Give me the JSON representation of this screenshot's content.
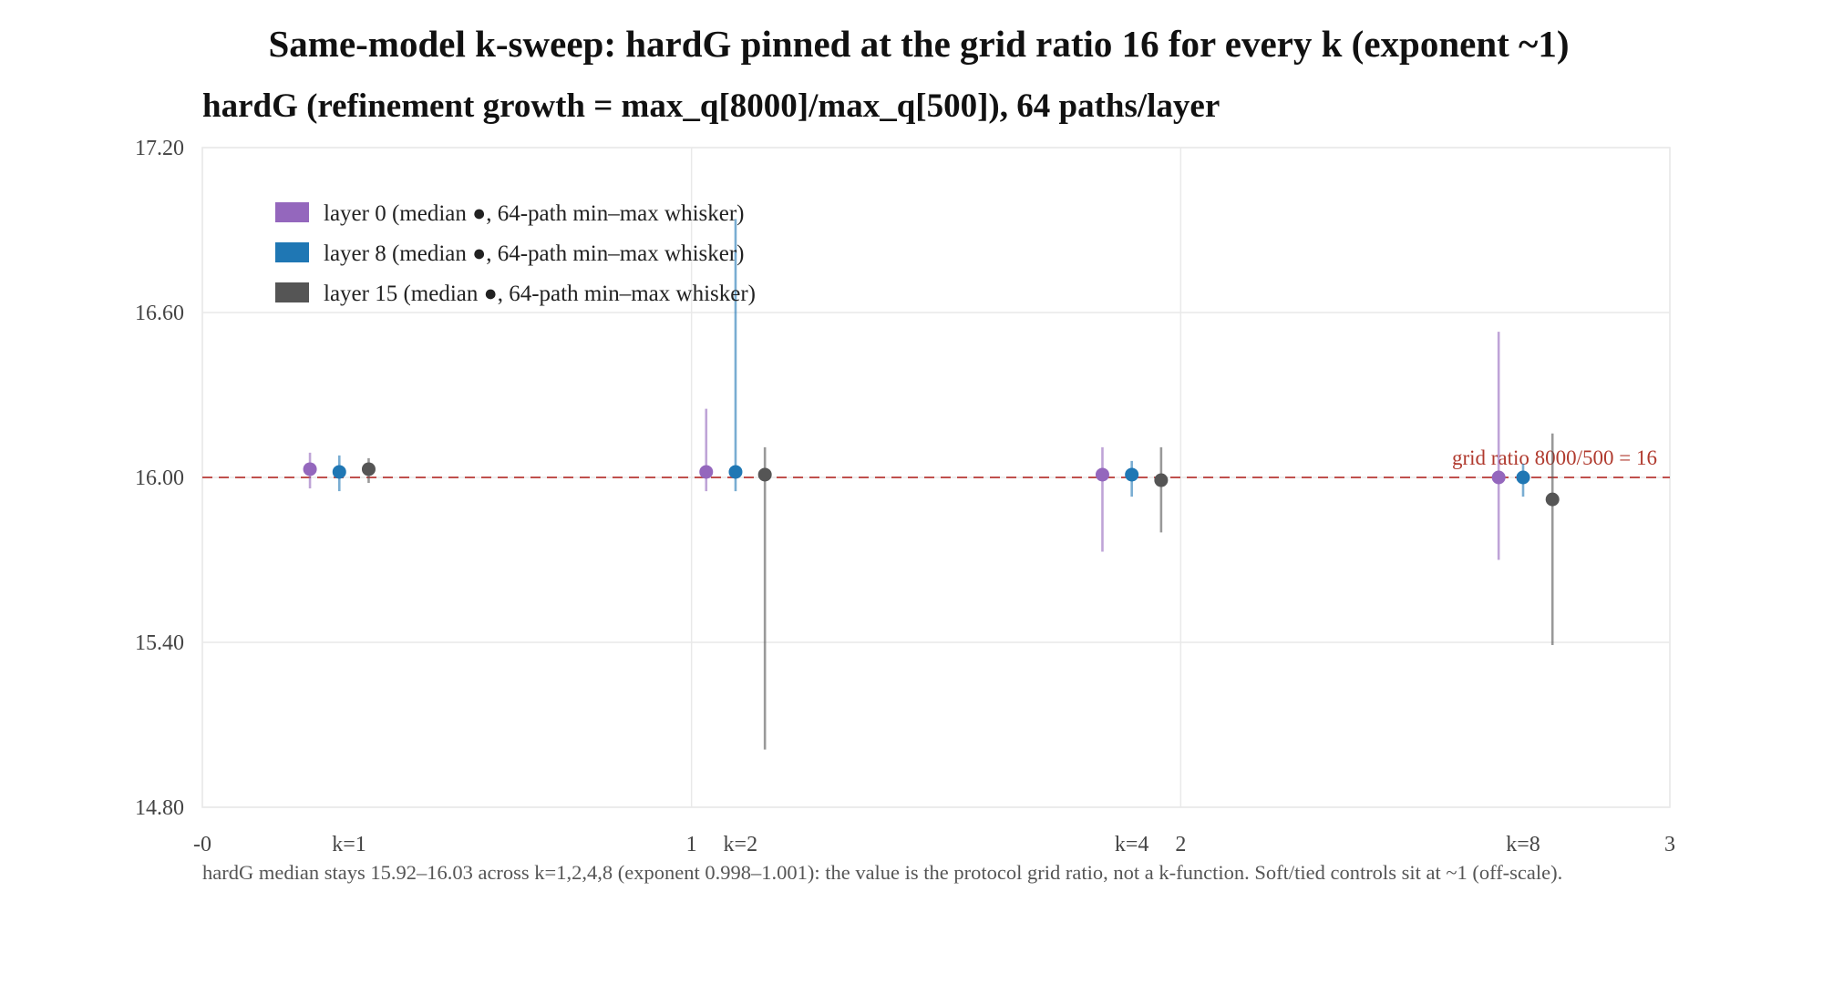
{
  "chart_data": {
    "type": "scatter",
    "title": "Same-model k-sweep: hardG pinned at the grid ratio 16 for every k (exponent ~1)",
    "subtitle": "hardG (refinement growth = max_q[8000]/max_q[500]), 64 paths/layer",
    "footnote": "hardG median stays 15.92–16.03 across k=1,2,4,8 (exponent 0.998–1.001): the value is the protocol grid ratio, not a k-function. Soft/tied controls sit at ~1 (off-scale).",
    "xlim": [
      0,
      3
    ],
    "x_ticks": [
      {
        "value": 0,
        "label": "-0"
      },
      {
        "value": 1,
        "label": "1"
      },
      {
        "value": 2,
        "label": "2"
      },
      {
        "value": 3,
        "label": "3"
      }
    ],
    "ylim": [
      14.8,
      17.2
    ],
    "y_ticks": [
      {
        "value": 14.8,
        "label": "14.80"
      },
      {
        "value": 15.4,
        "label": "15.40"
      },
      {
        "value": 16.0,
        "label": "16.00"
      },
      {
        "value": 16.6,
        "label": "16.60"
      },
      {
        "value": 17.2,
        "label": "17.20"
      }
    ],
    "grid": true,
    "legend_position": "top-left",
    "categories": [
      {
        "label": "k=1",
        "x": 0.3
      },
      {
        "label": "k=2",
        "x": 1.1
      },
      {
        "label": "k=4",
        "x": 1.9
      },
      {
        "label": "k=8",
        "x": 2.7
      }
    ],
    "reference_line": {
      "y": 16.0,
      "label": "grid ratio 8000/500 = 16",
      "color": "#c0504d"
    },
    "series": [
      {
        "name": "layer 0 (median ●, 64-path min–max whisker)",
        "color": "#9467bd",
        "points": [
          {
            "k": "k=1",
            "x": 0.22,
            "median": 16.03,
            "min": 15.96,
            "max": 16.09
          },
          {
            "k": "k=2",
            "x": 1.03,
            "median": 16.02,
            "min": 15.95,
            "max": 16.25
          },
          {
            "k": "k=4",
            "x": 1.84,
            "median": 16.01,
            "min": 15.73,
            "max": 16.11
          },
          {
            "k": "k=8",
            "x": 2.65,
            "median": 16.0,
            "min": 15.7,
            "max": 16.53
          }
        ]
      },
      {
        "name": "layer 8 (median ●, 64-path min–max whisker)",
        "color": "#1f77b4",
        "points": [
          {
            "k": "k=1",
            "x": 0.28,
            "median": 16.02,
            "min": 15.95,
            "max": 16.08
          },
          {
            "k": "k=2",
            "x": 1.09,
            "median": 16.02,
            "min": 15.95,
            "max": 16.94
          },
          {
            "k": "k=4",
            "x": 1.9,
            "median": 16.01,
            "min": 15.93,
            "max": 16.06
          },
          {
            "k": "k=8",
            "x": 2.7,
            "median": 16.0,
            "min": 15.93,
            "max": 16.05
          }
        ]
      },
      {
        "name": "layer 15 (median ●, 64-path min–max whisker)",
        "color": "#555555",
        "points": [
          {
            "k": "k=1",
            "x": 0.34,
            "median": 16.03,
            "min": 15.98,
            "max": 16.07
          },
          {
            "k": "k=2",
            "x": 1.15,
            "median": 16.01,
            "min": 15.01,
            "max": 16.11
          },
          {
            "k": "k=4",
            "x": 1.96,
            "median": 15.99,
            "min": 15.8,
            "max": 16.11
          },
          {
            "k": "k=8",
            "x": 2.76,
            "median": 15.92,
            "min": 15.39,
            "max": 16.16
          }
        ]
      }
    ]
  }
}
